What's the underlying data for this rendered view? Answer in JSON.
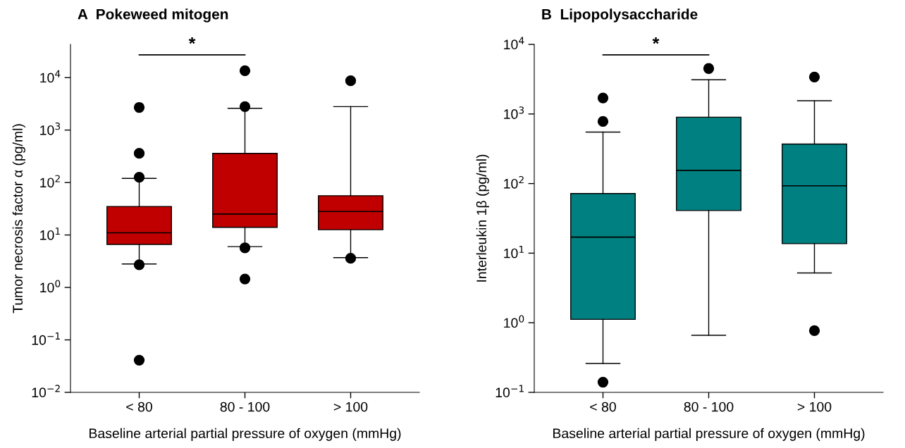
{
  "chart_data": [
    {
      "type": "box",
      "title": "A  Pokeweed mitogen",
      "xlabel": "Baseline arterial partial pressure of oxygen (mmHg)",
      "ylabel": "Tumor necrosis factor α (pg/ml)",
      "categories": [
        "< 80",
        "80 - 100",
        "> 100"
      ],
      "log": "y",
      "ylim": [
        0.01,
        43000
      ],
      "yticks": [
        {
          "value": 0.01,
          "label": "10$^{−2}$"
        },
        {
          "value": 0.1,
          "label": "10$^{−1}$"
        },
        {
          "value": 1,
          "label": "10$^{0}$"
        },
        {
          "value": 10,
          "label": "10$^{1}$"
        },
        {
          "value": 100,
          "label": "10$^{2}$"
        },
        {
          "value": 1000,
          "label": "10$^{3}$"
        },
        {
          "value": 10000,
          "label": "10$^{4}$"
        }
      ],
      "grid": false,
      "marker": "circle",
      "annotations": [
        "*"
      ],
      "series": [
        {
          "color": "#c00000",
          "boxes": [
            {
              "low": 2.8,
              "q1": 6.6,
              "median": 11,
              "q3": 35,
              "high": 120,
              "outliers": [
                2700,
                360,
                126,
                2.7,
                0.041
              ]
            },
            {
              "low": 6,
              "q1": 14,
              "median": 25,
              "q3": 360,
              "high": 2600,
              "outliers": [
                13500,
                2800,
                5.7,
                1.45
              ]
            },
            {
              "low": 3.7,
              "q1": 12.6,
              "median": 28,
              "q3": 56,
              "high": 2800,
              "outliers": [
                8700,
                3.6
              ]
            }
          ]
        }
      ]
    },
    {
      "type": "box",
      "title": "B  Lipopolysaccharide",
      "xlabel": "Baseline arterial partial pressure of oxygen (mmHg)",
      "ylabel": "Interleukin 1β (pg/ml)",
      "categories": [
        "< 80",
        "80 - 100",
        "> 100"
      ],
      "log": "y",
      "ylim": [
        0.1,
        10000
      ],
      "yticks": [
        {
          "value": 0.1,
          "label": "10$^{−1}$"
        },
        {
          "value": 1,
          "label": "10$^{0}$"
        },
        {
          "value": 10,
          "label": "10$^{1}$"
        },
        {
          "value": 100,
          "label": "10$^{2}$"
        },
        {
          "value": 1000,
          "label": "10$^{3}$"
        },
        {
          "value": 10000,
          "label": "10$^{4}$"
        }
      ],
      "grid": false,
      "marker": "circle",
      "annotations": [
        "*"
      ],
      "series": [
        {
          "color": "#008080",
          "boxes": [
            {
              "low": 0.26,
              "q1": 1.12,
              "median": 17,
              "q3": 72,
              "high": 550,
              "outliers": [
                1700,
                780,
                0.14
              ]
            },
            {
              "low": 0.66,
              "q1": 41,
              "median": 155,
              "q3": 900,
              "high": 3100,
              "outliers": [
                4500
              ]
            },
            {
              "low": 5.2,
              "q1": 13.7,
              "median": 93,
              "q3": 370,
              "high": 1550,
              "outliers": [
                3400,
                0.77
              ]
            }
          ]
        }
      ]
    }
  ]
}
